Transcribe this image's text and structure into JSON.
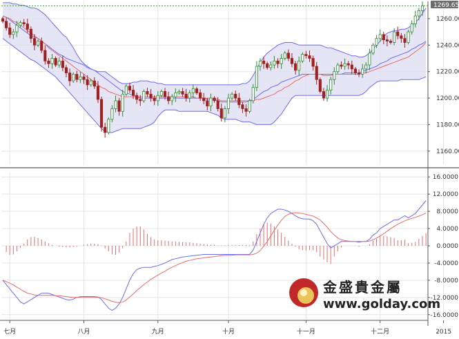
{
  "colors": {
    "background": "#ffffff",
    "grid": "#e4e4e4",
    "band_fill": "#dcdcf2",
    "band_line": "#6b6bef",
    "ma_line": "#e86a6a",
    "candle_up": "#2f8a2f",
    "candle_down": "#a02020",
    "macd_line": "#6b6bef",
    "signal_line": "#e86a6a",
    "histogram": "#e86a6a",
    "price_badge": "#6c6c6c",
    "logo_circle": "#c0282a"
  },
  "price_badge": "1269.65",
  "logo": {
    "name_cn": "金盛貴金屬",
    "url": "www.golday.com",
    "icon": "golden-sphere-icon"
  },
  "chart_data": [
    {
      "type": "candlestick",
      "title": "",
      "ylim": [
        1150,
        1273
      ],
      "y_ticks": [
        "1160.00",
        "1180.00",
        "1200.00",
        "1220.00",
        "1240.00",
        "1260.00"
      ],
      "y_tick_values": [
        1160,
        1180,
        1200,
        1220,
        1240,
        1260
      ],
      "last_price": 1269.65,
      "grid": true,
      "x_ticks": [
        "七月",
        "八月",
        "九月",
        "十月",
        "十一月",
        "十二月",
        "2015"
      ],
      "x_tick_bars": [
        2,
        23,
        44,
        64,
        86,
        107,
        125
      ],
      "closes": [
        1258,
        1253,
        1248,
        1250,
        1255,
        1257,
        1256,
        1252,
        1245,
        1240,
        1243,
        1236,
        1228,
        1226,
        1230,
        1225,
        1228,
        1223,
        1219,
        1213,
        1218,
        1214,
        1216,
        1214,
        1210,
        1213,
        1209,
        1199,
        1178,
        1174,
        1184,
        1192,
        1198,
        1190,
        1203,
        1209,
        1206,
        1202,
        1199,
        1198,
        1205,
        1203,
        1200,
        1198,
        1202,
        1205,
        1201,
        1198,
        1201,
        1204,
        1205,
        1203,
        1200,
        1204,
        1207,
        1204,
        1200,
        1198,
        1194,
        1200,
        1198,
        1192,
        1185,
        1192,
        1200,
        1203,
        1200,
        1195,
        1192,
        1190,
        1198,
        1208,
        1224,
        1228,
        1226,
        1223,
        1225,
        1228,
        1226,
        1230,
        1234,
        1230,
        1226,
        1221,
        1228,
        1233,
        1232,
        1230,
        1224,
        1214,
        1205,
        1200,
        1206,
        1214,
        1220,
        1225,
        1224,
        1226,
        1225,
        1222,
        1219,
        1218,
        1222,
        1225,
        1234,
        1240,
        1245,
        1248,
        1244,
        1243,
        1242,
        1250,
        1247,
        1245,
        1242,
        1250,
        1256,
        1262,
        1266,
        1269.65
      ],
      "bands": {
        "upper": [
          1272,
          1272,
          1272,
          1271,
          1271,
          1270,
          1270,
          1269,
          1268,
          1268,
          1267,
          1265,
          1263,
          1260,
          1257,
          1254,
          1251,
          1248,
          1246,
          1242,
          1238,
          1233,
          1229,
          1226,
          1224,
          1222,
          1221,
          1220,
          1220,
          1220,
          1218,
          1216,
          1214,
          1212,
          1211,
          1211,
          1211,
          1212,
          1212,
          1213,
          1213,
          1213,
          1212,
          1212,
          1211,
          1211,
          1210,
          1210,
          1210,
          1210,
          1210,
          1210,
          1210,
          1210,
          1210,
          1210,
          1210,
          1210,
          1210,
          1210,
          1210,
          1210,
          1210,
          1210,
          1210,
          1210,
          1210,
          1210,
          1211,
          1211,
          1213,
          1217,
          1222,
          1227,
          1231,
          1234,
          1236,
          1238,
          1240,
          1241,
          1242,
          1242,
          1242,
          1241,
          1240,
          1240,
          1240,
          1240,
          1240,
          1240,
          1240,
          1239,
          1238,
          1238,
          1237,
          1236,
          1235,
          1234,
          1233,
          1232,
          1232,
          1231,
          1231,
          1232,
          1234,
          1237,
          1240,
          1243,
          1246,
          1249,
          1250,
          1251,
          1251,
          1252,
          1252,
          1253,
          1255,
          1257,
          1260,
          1264,
          1268
        ],
        "middle": [
          1262,
          1261,
          1259,
          1257,
          1255,
          1253,
          1251,
          1249,
          1247,
          1246,
          1245,
          1243,
          1241,
          1239,
          1237,
          1235,
          1233,
          1232,
          1230,
          1229,
          1228,
          1227,
          1226,
          1225,
          1223,
          1222,
          1221,
          1219,
          1217,
          1215,
          1213,
          1211,
          1209,
          1207,
          1205,
          1204,
          1203,
          1202,
          1201,
          1200,
          1200,
          1200,
          1200,
          1200,
          1200,
          1200,
          1200,
          1200,
          1200,
          1200,
          1200,
          1200,
          1200,
          1200,
          1200,
          1200,
          1200,
          1200,
          1199,
          1199,
          1199,
          1198,
          1197,
          1197,
          1197,
          1197,
          1197,
          1197,
          1197,
          1197,
          1198,
          1199,
          1201,
          1203,
          1205,
          1206,
          1208,
          1209,
          1210,
          1212,
          1213,
          1214,
          1215,
          1216,
          1217,
          1218,
          1218,
          1218,
          1218,
          1218,
          1218,
          1218,
          1218,
          1218,
          1218,
          1218,
          1218,
          1219,
          1219,
          1219,
          1219,
          1219,
          1220,
          1221,
          1222,
          1223,
          1224,
          1226,
          1227,
          1228,
          1230,
          1231,
          1232,
          1233,
          1234,
          1235,
          1237,
          1238,
          1240,
          1241,
          1243
        ],
        "lower": [
          1245,
          1243,
          1241,
          1239,
          1237,
          1235,
          1233,
          1231,
          1229,
          1228,
          1226,
          1224,
          1222,
          1220,
          1218,
          1216,
          1213,
          1210,
          1207,
          1204,
          1201,
          1198,
          1195,
          1192,
          1189,
          1186,
          1183,
          1180,
          1177,
          1175,
          1174,
          1174,
          1175,
          1176,
          1177,
          1177,
          1177,
          1177,
          1177,
          1177,
          1178,
          1179,
          1180,
          1182,
          1186,
          1189,
          1191,
          1191,
          1191,
          1191,
          1190,
          1190,
          1190,
          1190,
          1190,
          1190,
          1190,
          1190,
          1190,
          1189,
          1188,
          1187,
          1185,
          1184,
          1184,
          1184,
          1184,
          1183,
          1182,
          1182,
          1182,
          1181,
          1180,
          1180,
          1180,
          1180,
          1180,
          1182,
          1185,
          1188,
          1192,
          1196,
          1200,
          1202,
          1202,
          1202,
          1202,
          1202,
          1202,
          1202,
          1202,
          1202,
          1202,
          1202,
          1202,
          1202,
          1202,
          1202,
          1202,
          1202,
          1202,
          1202,
          1203,
          1205,
          1208,
          1210,
          1212,
          1213,
          1213,
          1213,
          1213,
          1213,
          1213,
          1214,
          1214,
          1214,
          1214,
          1214,
          1214,
          1215,
          1216
        ]
      },
      "moving_average": [
        1262,
        1261,
        1260,
        1258,
        1257,
        1255,
        1253,
        1251,
        1249,
        1247,
        1245,
        1243,
        1241,
        1238,
        1236,
        1234,
        1232,
        1230,
        1228,
        1226,
        1224,
        1222,
        1220,
        1218,
        1216,
        1214,
        1212,
        1210,
        1208,
        1207,
        1205,
        1204,
        1203,
        1202,
        1201,
        1201,
        1201,
        1201,
        1201,
        1201,
        1201,
        1201,
        1201,
        1201,
        1201,
        1201,
        1201,
        1201,
        1201,
        1201,
        1201,
        1201,
        1201,
        1201,
        1201,
        1200,
        1200,
        1200,
        1200,
        1200,
        1200,
        1199,
        1198,
        1198,
        1198,
        1198,
        1198,
        1198,
        1198,
        1198,
        1198,
        1198,
        1199,
        1199,
        1200,
        1201,
        1202,
        1203,
        1205,
        1206,
        1208,
        1209,
        1211,
        1213,
        1214,
        1216,
        1217,
        1218,
        1218,
        1218,
        1218,
        1217,
        1217,
        1217,
        1218,
        1218,
        1218,
        1218,
        1218,
        1218,
        1218,
        1218,
        1219,
        1219,
        1220,
        1221,
        1222,
        1223,
        1224,
        1225,
        1226,
        1227,
        1228,
        1229,
        1230,
        1231,
        1233,
        1235,
        1237,
        1239,
        1242
      ]
    },
    {
      "type": "line",
      "title": "",
      "ylim": [
        -17,
        17
      ],
      "y_ticks": [
        "-16.0000",
        "-12.0000",
        "-8.0000",
        "-4.0000",
        "0.0000",
        "4.0000",
        "8.0000",
        "12.0000",
        "16.0000"
      ],
      "y_tick_values": [
        -16,
        -12,
        -8,
        -4,
        0,
        4,
        8,
        12,
        16
      ],
      "grid": true,
      "series": [
        {
          "role": "macd",
          "values": [
            -8,
            -9,
            -10,
            -11,
            -12,
            -13,
            -13.5,
            -13,
            -12.5,
            -12,
            -11.5,
            -11,
            -11,
            -11,
            -11.3,
            -11.6,
            -11.9,
            -12.2,
            -12.5,
            -12.6,
            -12.4,
            -12,
            -11.8,
            -11.8,
            -11.8,
            -11.8,
            -11.8,
            -11.9,
            -12.5,
            -13.5,
            -14.5,
            -15,
            -14.5,
            -13.5,
            -12,
            -10,
            -8,
            -6.5,
            -5.5,
            -5.2,
            -5,
            -5,
            -5,
            -4.8,
            -4.6,
            -4.3,
            -4,
            -3.6,
            -3.2,
            -3,
            -2.8,
            -2.6,
            -2.5,
            -2.4,
            -2.3,
            -2.2,
            -2.1,
            -2,
            -2,
            -2,
            -2,
            -2,
            -2,
            -2,
            -2,
            -2,
            -2,
            -2,
            -2,
            -2,
            -2,
            -1,
            1,
            3,
            5,
            6.5,
            7.5,
            8,
            8.5,
            8.5,
            8.3,
            8,
            7.5,
            7,
            6.5,
            6.3,
            6.2,
            6.2,
            5.8,
            5,
            3.5,
            2,
            0.5,
            -0.5,
            0,
            0.5,
            1,
            1,
            1,
            1,
            1,
            0.8,
            1,
            1,
            1.5,
            2.5,
            3,
            4,
            4.5,
            5,
            5.5,
            6,
            6,
            6.5,
            7,
            6.5,
            7,
            7.5,
            8.5,
            9.5,
            10.5
          ],
          "zero_line": 0
        },
        {
          "role": "signal",
          "values": [
            -8,
            -8.3,
            -8.7,
            -9.1,
            -9.6,
            -10.1,
            -10.6,
            -11,
            -11.2,
            -11.4,
            -11.5,
            -11.5,
            -11.5,
            -11.5,
            -11.5,
            -11.6,
            -11.6,
            -11.7,
            -11.8,
            -11.9,
            -12,
            -12,
            -12,
            -12,
            -12,
            -12,
            -12,
            -12,
            -12.1,
            -12.3,
            -12.6,
            -12.9,
            -13.1,
            -13.2,
            -13.1,
            -12.6,
            -11.9,
            -11.2,
            -10.4,
            -9.7,
            -9,
            -8.4,
            -7.8,
            -7.3,
            -6.8,
            -6.3,
            -5.9,
            -5.4,
            -5,
            -4.6,
            -4.2,
            -3.9,
            -3.6,
            -3.4,
            -3.2,
            -3,
            -2.9,
            -2.8,
            -2.7,
            -2.6,
            -2.5,
            -2.4,
            -2.3,
            -2.2,
            -2.2,
            -2.2,
            -2.1,
            -2.1,
            -2.1,
            -2.1,
            -2.1,
            -2,
            -1.7,
            -1.1,
            -0.1,
            1,
            2.3,
            3.6,
            4.8,
            5.9,
            6.8,
            7.3,
            7.6,
            7.7,
            7.6,
            7.5,
            7.3,
            7.1,
            6.9,
            6.5,
            6,
            5.2,
            4.3,
            3.3,
            2.5,
            1.8,
            1.4,
            1.2,
            1.1,
            1,
            1,
            1,
            1,
            1,
            1.1,
            1.4,
            1.8,
            2.3,
            2.8,
            3.4,
            4,
            4.5,
            5,
            5.4,
            5.8,
            6.1,
            6.4,
            6.6,
            6.9,
            7.2,
            7.6
          ],
          "zero_line": 0
        }
      ],
      "histogram": [
        0,
        -1.5,
        -2.1,
        -2,
        -1.3,
        -0.5,
        0.5,
        1.5,
        2,
        2.1,
        1.8,
        1.5,
        1,
        0.6,
        0.2,
        0,
        -0.2,
        -0.3,
        -0.4,
        -0.4,
        -0.3,
        -0.2,
        0,
        0.2,
        0.4,
        0.5,
        0.5,
        0.4,
        0.1,
        -0.6,
        -1.3,
        -2,
        -2.1,
        -1.6,
        -0.6,
        1,
        3,
        4,
        4.5,
        4.5,
        3.8,
        2.8,
        2,
        1.5,
        1.3,
        1.3,
        1.2,
        1.1,
        1,
        1,
        0.9,
        0.9,
        0.8,
        0.8,
        0.7,
        0.6,
        0.5,
        0.4,
        0.3,
        0.2,
        0.2,
        0.1,
        0.1,
        0.1,
        0.2,
        0.2,
        0.2,
        0.2,
        0.2,
        0.2,
        0.2,
        1,
        2.7,
        4,
        5,
        5.4,
        5.2,
        4.5,
        3.8,
        3,
        2.1,
        1.2,
        0.5,
        -0.2,
        -0.8,
        -1,
        -1.1,
        -1,
        -1,
        -1.5,
        -2.5,
        -3.2,
        -3.8,
        -4.2,
        -2.5,
        -1.3,
        -0.4,
        0,
        0,
        0,
        0,
        -0.2,
        0,
        0,
        0.4,
        1.2,
        1.6,
        2.2,
        2.3,
        2.2,
        2,
        1.8,
        1.3,
        1.3,
        1.4,
        0.6,
        0.7,
        0.9,
        1.6,
        2.3,
        2.9
      ]
    }
  ]
}
